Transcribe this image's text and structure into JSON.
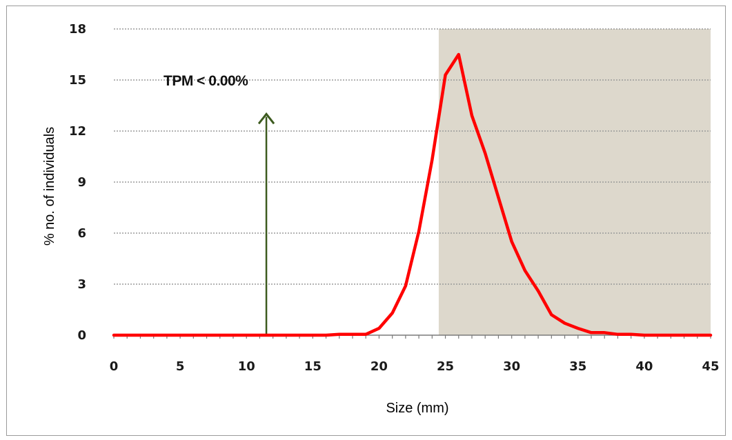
{
  "chart_data": {
    "type": "line",
    "title": "",
    "xlabel": "Size (mm)",
    "ylabel": "% no. of individuals",
    "xlim": [
      0,
      45
    ],
    "ylim": [
      0,
      18
    ],
    "xticks": [
      0,
      5,
      10,
      15,
      20,
      25,
      30,
      35,
      40,
      45
    ],
    "yticks": [
      0,
      3,
      6,
      9,
      12,
      15,
      18
    ],
    "grid": "horizontal",
    "legend": "none",
    "series": [
      {
        "color": "#ff0000",
        "x": [
          0,
          1,
          2,
          3,
          4,
          5,
          6,
          7,
          8,
          9,
          10,
          11,
          12,
          13,
          14,
          15,
          16,
          17,
          18,
          19,
          20,
          21,
          22,
          23,
          24,
          25,
          26,
          27,
          28,
          29,
          30,
          31,
          32,
          33,
          34,
          35,
          36,
          37,
          38,
          39,
          40,
          41,
          42,
          43,
          44,
          45
        ],
        "y": [
          0,
          0,
          0,
          0,
          0,
          0,
          0,
          0,
          0,
          0,
          0,
          0,
          0,
          0,
          0,
          0,
          0,
          0.05,
          0.05,
          0.05,
          0.4,
          1.3,
          2.9,
          6.1,
          10.3,
          15.3,
          16.5,
          12.9,
          10.7,
          8.1,
          5.5,
          3.8,
          2.6,
          1.2,
          0.7,
          0.4,
          0.15,
          0.15,
          0.05,
          0.05,
          0,
          0,
          0,
          0,
          0,
          0
        ]
      }
    ],
    "shaded_region": {
      "x_start": 24.5,
      "x_end": 45,
      "color": "#ddd8cc"
    },
    "annotations": [
      {
        "text": "TPM < 0.00%",
        "x": 11.5,
        "y": 15
      }
    ],
    "arrow": {
      "x": 11.5,
      "y_start": 0,
      "y_end": 13,
      "color": "#3c5a1e"
    }
  }
}
